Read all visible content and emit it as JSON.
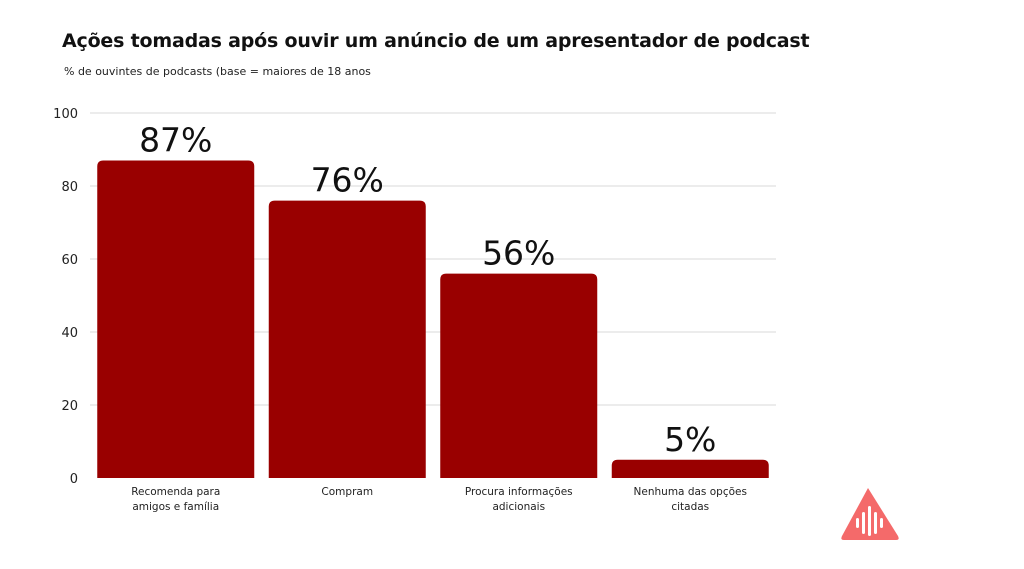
{
  "header": {
    "title": "Ações tomadas após ouvir um anúncio de um apresentador de podcast",
    "subtitle": "% de ouvintes de podcasts (base = maiores de 18 anos"
  },
  "chart_data": {
    "type": "bar",
    "title": "Ações tomadas após ouvir um anúncio de um apresentador de podcast",
    "subtitle": "% de ouvintes de podcasts (base = maiores de 18 anos",
    "categories": [
      [
        "Recomenda para",
        "amigos e família"
      ],
      [
        "Compram"
      ],
      [
        "Procura informações",
        "adicionais"
      ],
      [
        "Nenhuma das opções",
        "citadas"
      ]
    ],
    "values": [
      87,
      76,
      56,
      5
    ],
    "data_labels": [
      "87%",
      "76%",
      "56%",
      "5%"
    ],
    "y_ticks": [
      0,
      20,
      40,
      60,
      80,
      100
    ],
    "y_tick_labels": [
      "0",
      "20",
      "40",
      "60",
      "80",
      "100"
    ],
    "ylim": [
      0,
      100
    ],
    "grid": true,
    "bar_color": "#990000",
    "grid_color": "#d9d9d9"
  },
  "logo": {
    "icon": "triangle-podcast-logo-icon",
    "color": "#f46a6a"
  }
}
